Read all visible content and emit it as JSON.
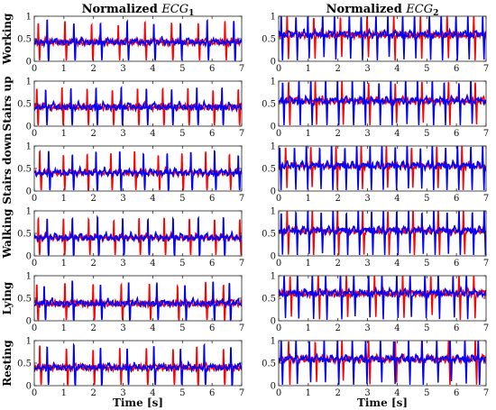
{
  "chart_data": {
    "type": "line",
    "grid": false,
    "columns": [
      {
        "title_text": "Normalized",
        "title_symbol": "ECG",
        "title_subscript": "1"
      },
      {
        "title_text": "Normalized",
        "title_symbol": "ECG",
        "title_subscript": "2"
      }
    ],
    "rows": [
      "Working",
      "Stairs up",
      "Stairs down",
      "Walking",
      "Lying",
      "Resting"
    ],
    "xlabel": "Time [s]",
    "xlim": [
      0,
      7
    ],
    "ylim": [
      0,
      1
    ],
    "xticks": [
      0,
      1,
      2,
      3,
      4,
      5,
      6,
      7
    ],
    "yticks": [
      0,
      0.5,
      1
    ],
    "ytick_labels": [
      "0",
      "0.5",
      "1"
    ],
    "series_colors": {
      "red": "#ff0000",
      "blue": "#0000ff"
    },
    "panels": [
      {
        "row": "Working",
        "column": 1,
        "baseline": 0.42,
        "red_beats": [
          0.15,
          1.05,
          1.95,
          2.85,
          3.75,
          4.65,
          5.55,
          6.45
        ],
        "blue_beats": [
          0.45,
          1.35,
          2.25,
          3.15,
          4.05,
          4.95,
          5.85,
          6.75
        ]
      },
      {
        "row": "Working",
        "column": 2,
        "baseline": 0.58,
        "red_beats": [
          0.3,
          1.2,
          2.1,
          3.0,
          3.9,
          4.8,
          5.7,
          6.6
        ],
        "blue_beats": [
          0.1,
          0.6,
          1.0,
          1.5,
          1.9,
          2.4,
          2.8,
          3.3,
          3.7,
          4.2,
          4.6,
          5.1,
          5.5,
          6.0,
          6.4,
          6.9
        ]
      },
      {
        "row": "Stairs up",
        "column": 1,
        "baseline": 0.42,
        "red_beats": [
          0.1,
          0.95,
          1.8,
          2.65,
          3.5,
          4.35,
          5.2,
          6.05,
          6.9
        ],
        "blue_beats": [
          0.4,
          1.25,
          2.1,
          2.95,
          3.8,
          4.65,
          5.5,
          6.35
        ]
      },
      {
        "row": "Stairs up",
        "column": 2,
        "baseline": 0.55,
        "red_beats": [
          0.35,
          1.25,
          2.15,
          3.05,
          3.95,
          4.85,
          5.75,
          6.65
        ],
        "blue_beats": [
          0.15,
          0.7,
          1.1,
          1.6,
          2.0,
          2.5,
          2.9,
          3.4,
          3.8,
          4.3,
          4.7,
          5.2,
          5.6,
          6.1,
          6.5
        ]
      },
      {
        "row": "Stairs down",
        "column": 1,
        "baseline": 0.4,
        "red_beats": [
          0.2,
          1.0,
          1.8,
          2.6,
          3.4,
          4.2,
          5.0,
          5.8,
          6.6
        ],
        "blue_beats": [
          0.5,
          1.3,
          2.1,
          2.9,
          3.7,
          4.5,
          5.3,
          6.1,
          6.9
        ]
      },
      {
        "row": "Stairs down",
        "column": 2,
        "baseline": 0.55,
        "red_beats": [
          0.25,
          1.1,
          1.95,
          2.8,
          3.65,
          4.5,
          5.35,
          6.2
        ],
        "blue_beats": [
          0.05,
          0.55,
          0.95,
          1.4,
          1.8,
          2.25,
          2.65,
          3.1,
          3.5,
          3.95,
          4.35,
          4.8,
          5.2,
          5.65,
          6.05,
          6.5,
          6.9
        ]
      },
      {
        "row": "Walking",
        "column": 1,
        "baseline": 0.4,
        "red_beats": [
          0.15,
          1.0,
          1.85,
          2.7,
          3.55,
          4.4,
          5.25,
          6.1,
          6.95
        ],
        "blue_beats": [
          0.45,
          1.3,
          2.15,
          3.0,
          3.85,
          4.7,
          5.55,
          6.4
        ]
      },
      {
        "row": "Walking",
        "column": 2,
        "baseline": 0.55,
        "red_beats": [
          0.3,
          1.15,
          2.0,
          2.85,
          3.7,
          4.55,
          5.4,
          6.25
        ],
        "blue_beats": [
          0.1,
          0.6,
          1.0,
          1.45,
          1.85,
          2.3,
          2.7,
          3.15,
          3.55,
          4.0,
          4.4,
          4.85,
          5.25,
          5.7,
          6.1,
          6.55,
          6.95
        ]
      },
      {
        "row": "Lying",
        "column": 1,
        "baseline": 0.38,
        "red_beats": [
          0.1,
          1.05,
          2.0,
          2.95,
          3.9,
          4.85,
          5.8,
          6.4
        ],
        "blue_beats": [
          0.35,
          1.3,
          2.25,
          3.2,
          4.15,
          5.1,
          6.05,
          6.6
        ]
      },
      {
        "row": "Lying",
        "column": 2,
        "baseline": 0.6,
        "red_beats": [
          0.4,
          1.35,
          2.3,
          3.25,
          4.2,
          5.15,
          6.1,
          6.6
        ],
        "blue_beats": [
          0.2,
          0.65,
          1.15,
          1.6,
          2.1,
          2.55,
          3.05,
          3.5,
          4.0,
          4.45,
          4.95,
          5.4,
          5.9,
          6.35
        ]
      },
      {
        "row": "Resting",
        "column": 1,
        "baseline": 0.4,
        "red_beats": [
          0.2,
          1.1,
          2.0,
          2.9,
          3.8,
          4.7,
          5.5,
          6.4
        ],
        "blue_beats": [
          0.45,
          1.35,
          2.25,
          3.15,
          4.05,
          4.95,
          5.75,
          6.65
        ]
      },
      {
        "row": "Resting",
        "column": 2,
        "baseline": 0.58,
        "red_beats": [
          0.35,
          1.25,
          2.15,
          3.05,
          3.95,
          4.85,
          5.75,
          6.65
        ],
        "blue_beats": [
          0.1,
          0.6,
          1.05,
          1.55,
          2.0,
          2.5,
          2.95,
          3.45,
          3.9,
          4.4,
          4.85,
          5.35,
          5.8,
          6.3,
          6.75
        ]
      }
    ]
  }
}
